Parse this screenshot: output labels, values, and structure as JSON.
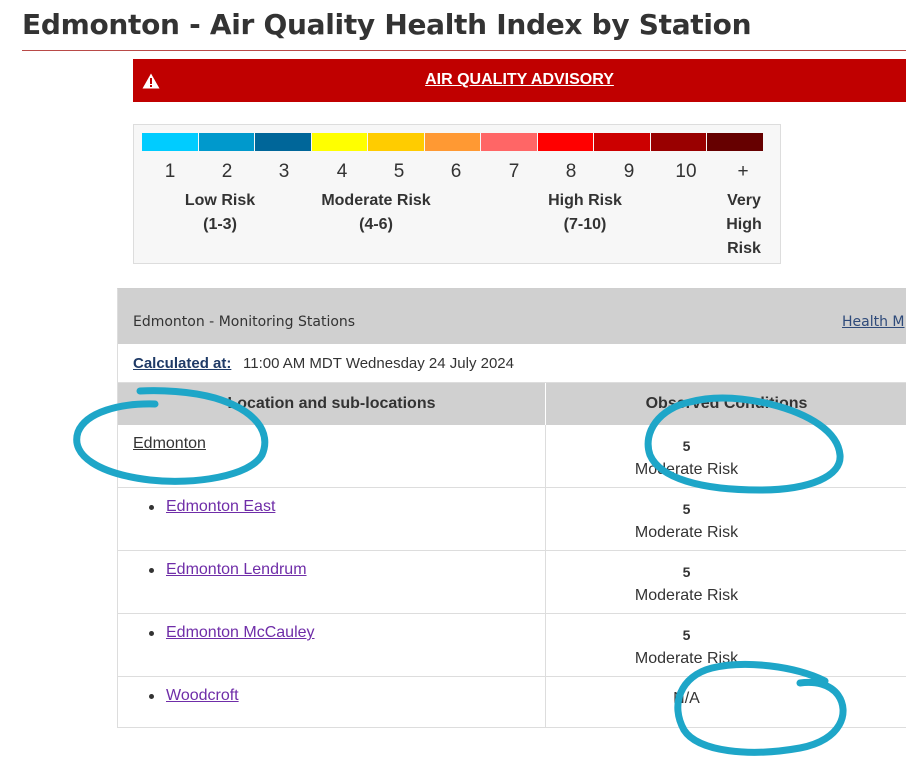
{
  "page": {
    "title": "Edmonton - Air Quality Health Index by Station"
  },
  "advisory": {
    "label": "AIR QUALITY ADVISORY",
    "icon": "warning-icon",
    "color": "#c00000"
  },
  "scale": {
    "colors": [
      "#00ccff",
      "#0099cc",
      "#006699",
      "#ffff00",
      "#ffcc00",
      "#ff9933",
      "#ff6666",
      "#ff0000",
      "#cc0000",
      "#990000",
      "#660000"
    ],
    "numbers": [
      "1",
      "2",
      "3",
      "4",
      "5",
      "6",
      "7",
      "8",
      "9",
      "10",
      "+"
    ],
    "categories": [
      {
        "line1": "Low Risk",
        "line2": "(1-3)"
      },
      {
        "line1": "Moderate Risk",
        "line2": "(4-6)"
      },
      {
        "line1": "High Risk",
        "line2": "(7-10)"
      },
      {
        "line1": "Very",
        "line2": "High",
        "line3": "Risk"
      }
    ]
  },
  "stations": {
    "header_title": "Edmonton - Monitoring Stations",
    "header_link": "Health M",
    "calculated_label": "Calculated at:",
    "calculated_value": "11:00 AM MDT Wednesday 24 July 2024",
    "col_location": "Location and sub-locations",
    "col_conditions": "Observed Conditions",
    "rows": [
      {
        "location": "Edmonton",
        "value": "5",
        "risk": "Moderate Risk"
      },
      {
        "location": "Edmonton East",
        "value": "5",
        "risk": "Moderate Risk"
      },
      {
        "location": "Edmonton Lendrum",
        "value": "5",
        "risk": "Moderate Risk"
      },
      {
        "location": "Edmonton McCauley",
        "value": "5",
        "risk": "Moderate Risk"
      },
      {
        "location": "Woodcroft",
        "value": "N/A"
      }
    ]
  },
  "annotations": {
    "stroke_color": "#1ea6c8"
  }
}
